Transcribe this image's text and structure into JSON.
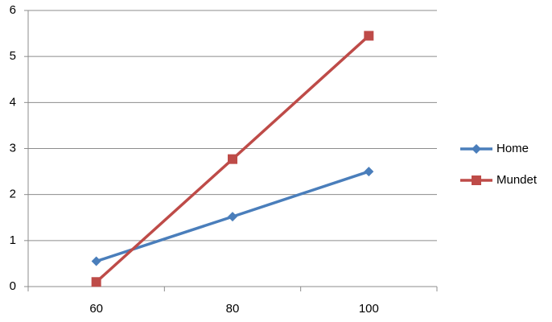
{
  "chart_data": {
    "type": "line",
    "categories": [
      60,
      80,
      100
    ],
    "series": [
      {
        "name": "Home",
        "color": "#4a7ebb",
        "marker": "diamond",
        "values": [
          0.55,
          1.52,
          2.5
        ]
      },
      {
        "name": "Mundet",
        "color": "#be4b48",
        "marker": "square",
        "values": [
          0.1,
          2.77,
          5.45
        ]
      }
    ],
    "ylim": [
      0,
      6
    ],
    "yticks": [
      0,
      1,
      2,
      3,
      4,
      5,
      6
    ],
    "grid": true,
    "legend": "right"
  }
}
